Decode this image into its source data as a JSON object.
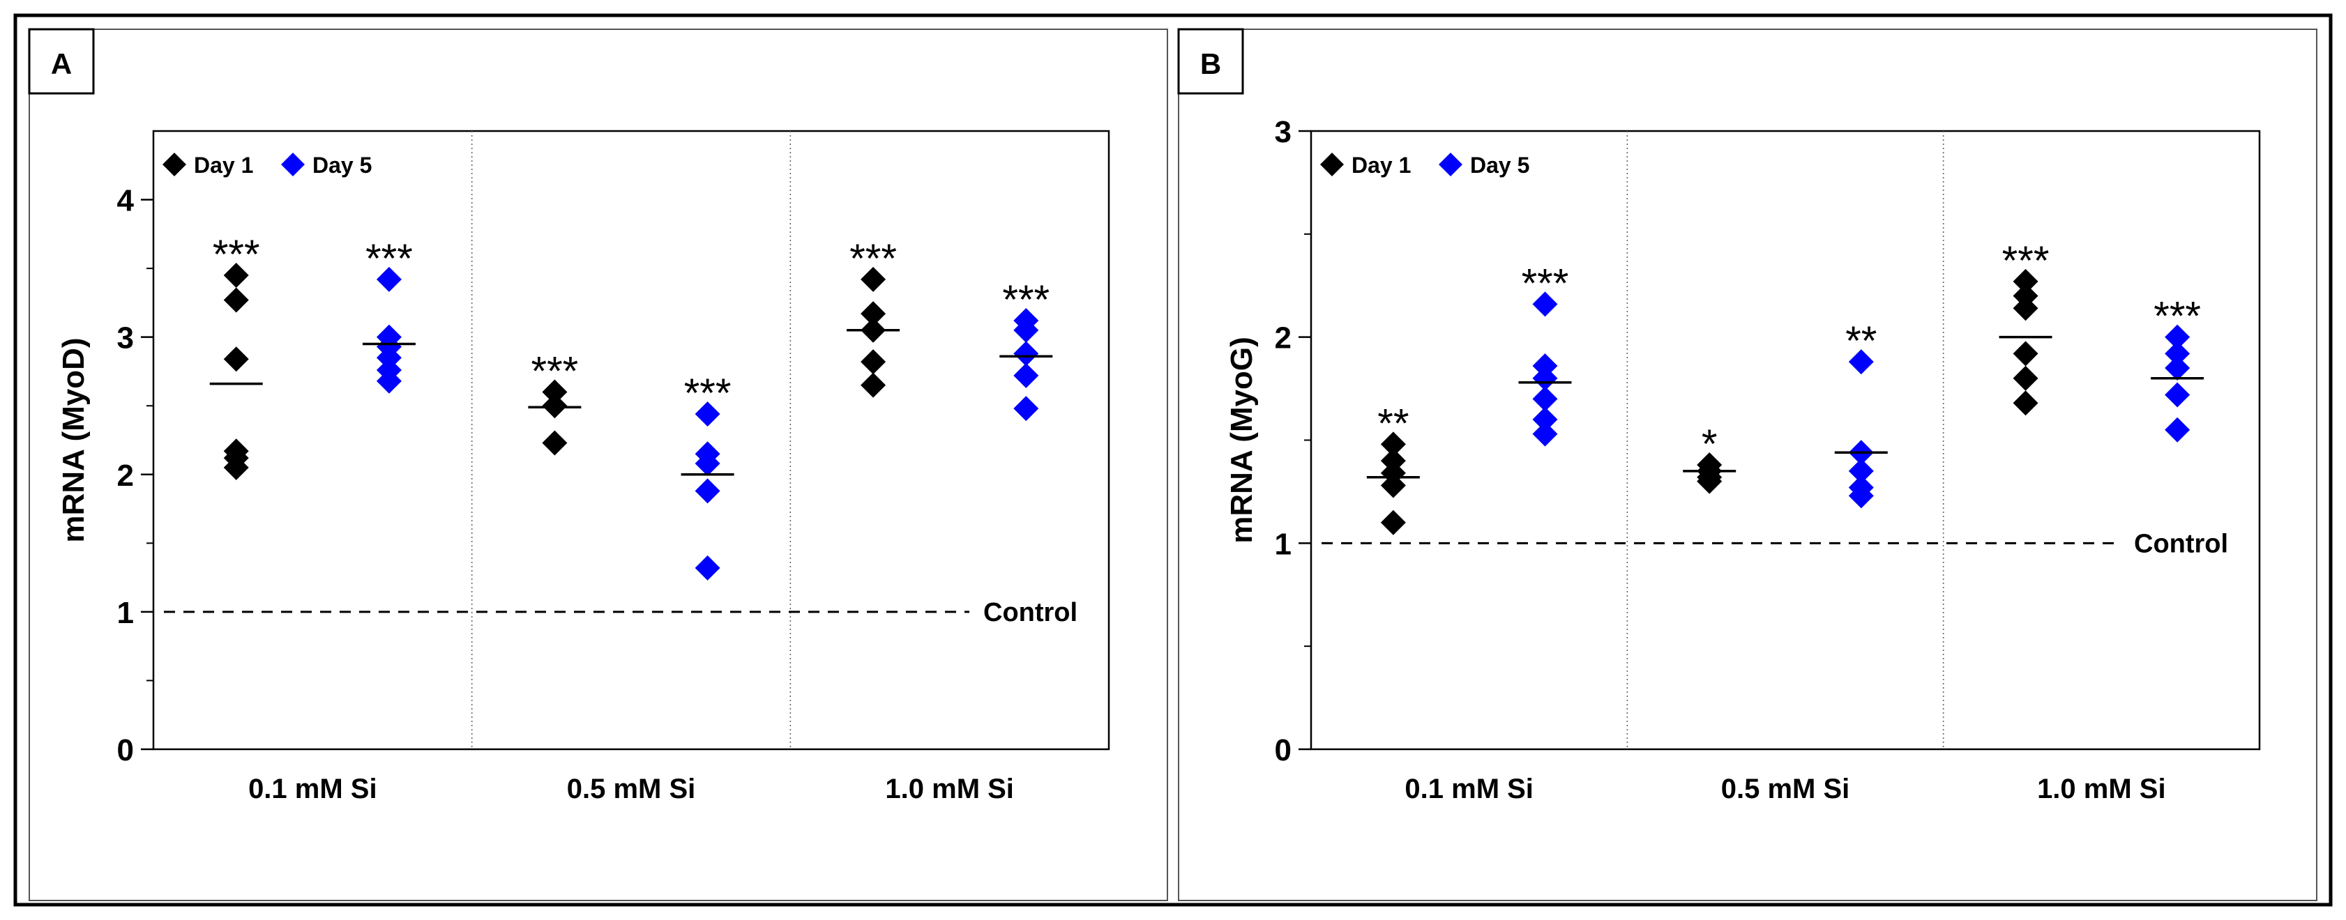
{
  "chart_data": [
    {
      "type": "scatter",
      "panel_label": "A",
      "ylabel": "mRNA (MyoD)",
      "ylim": [
        0,
        4.5
      ],
      "yticks": [
        "0",
        "1",
        "2",
        "3",
        "4"
      ],
      "categories": [
        "0.1 mM Si",
        "0.5 mM Si",
        "1.0 mM Si"
      ],
      "control_label": "Control",
      "control_value": 1.0,
      "legend": [
        "Day 1",
        "Day 5"
      ],
      "series": [
        {
          "name": "Day 1",
          "color": "#000000",
          "groups": [
            {
              "points": [
                3.45,
                3.27,
                2.84,
                2.17,
                2.12,
                2.05
              ],
              "mean": 2.66,
              "significance": "***"
            },
            {
              "points": [
                2.6,
                2.5,
                2.23
              ],
              "mean": 2.49,
              "significance": "***"
            },
            {
              "points": [
                3.42,
                3.17,
                3.05,
                2.82,
                2.65
              ],
              "mean": 3.05,
              "significance": "***"
            }
          ]
        },
        {
          "name": "Day 5",
          "color": "#0000ff",
          "groups": [
            {
              "points": [
                3.42,
                3.0,
                2.93,
                2.85,
                2.76,
                2.68
              ],
              "mean": 2.95,
              "significance": "***"
            },
            {
              "points": [
                2.44,
                2.15,
                2.08,
                1.88,
                1.32
              ],
              "mean": 2.0,
              "significance": "***"
            },
            {
              "points": [
                3.12,
                3.05,
                2.88,
                2.72,
                2.48
              ],
              "mean": 2.86,
              "significance": "***"
            }
          ]
        }
      ]
    },
    {
      "type": "scatter",
      "panel_label": "B",
      "ylabel": "mRNA (MyoG)",
      "ylim": [
        0,
        3
      ],
      "yticks": [
        "0",
        "1",
        "2",
        "3"
      ],
      "categories": [
        "0.1 mM Si",
        "0.5 mM Si",
        "1.0 mM Si"
      ],
      "control_label": "Control",
      "control_value": 1.0,
      "legend": [
        "Day 1",
        "Day 5"
      ],
      "series": [
        {
          "name": "Day 1",
          "color": "#000000",
          "groups": [
            {
              "points": [
                1.48,
                1.4,
                1.34,
                1.28,
                1.1
              ],
              "mean": 1.32,
              "significance": "**"
            },
            {
              "points": [
                1.38,
                1.35,
                1.32,
                1.3
              ],
              "mean": 1.35,
              "significance": "*"
            },
            {
              "points": [
                2.27,
                2.2,
                2.14,
                1.92,
                1.8,
                1.68
              ],
              "mean": 2.0,
              "significance": "***"
            }
          ]
        },
        {
          "name": "Day 5",
          "color": "#0000ff",
          "groups": [
            {
              "points": [
                2.16,
                1.86,
                1.8,
                1.7,
                1.6,
                1.53
              ],
              "mean": 1.78,
              "significance": "***"
            },
            {
              "points": [
                1.88,
                1.44,
                1.35,
                1.27,
                1.23
              ],
              "mean": 1.44,
              "significance": "**"
            },
            {
              "points": [
                2.0,
                1.92,
                1.85,
                1.72,
                1.55
              ],
              "mean": 1.8,
              "significance": "***"
            }
          ]
        }
      ]
    }
  ]
}
